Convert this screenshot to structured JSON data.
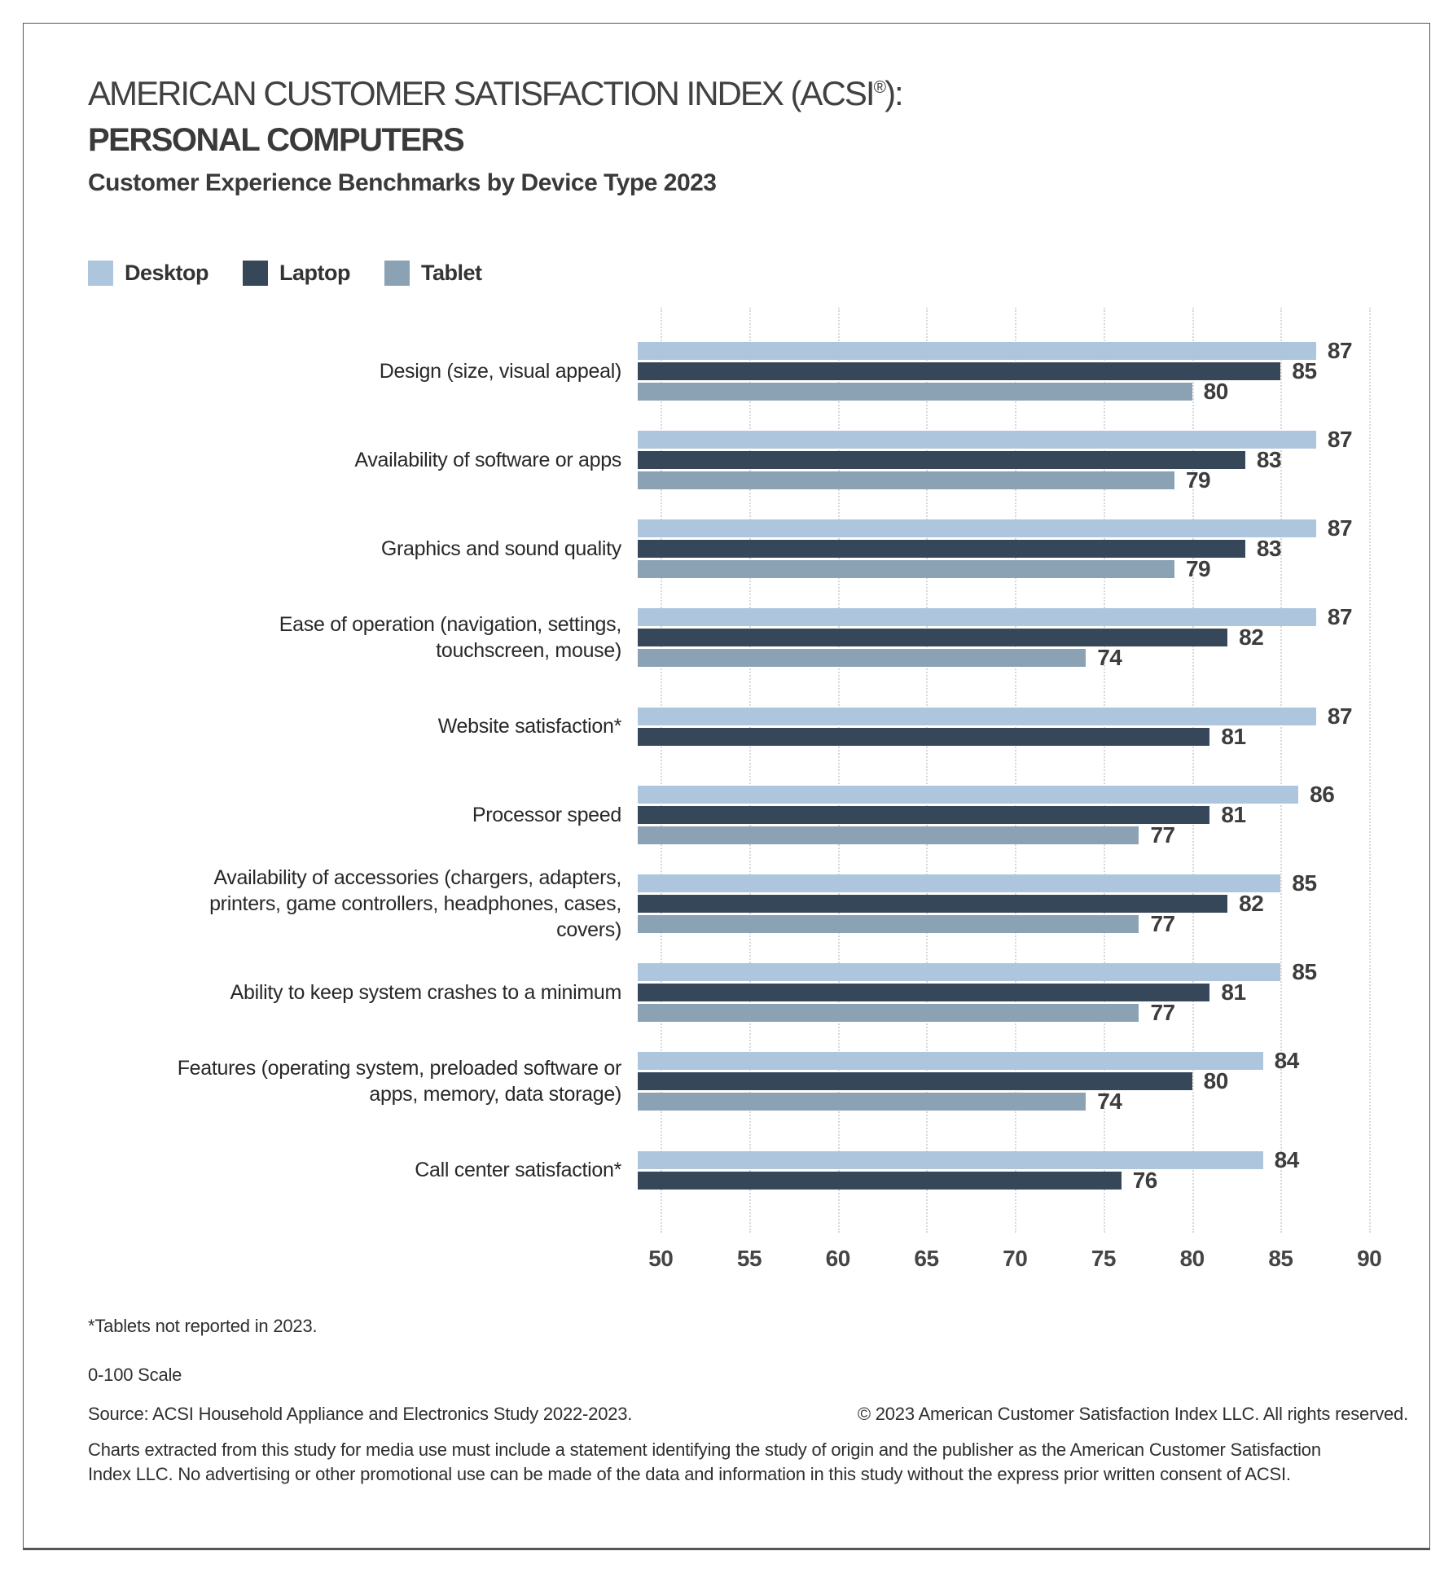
{
  "header": {
    "title_line1": "AMERICAN CUSTOMER SATISFACTION INDEX (ACSI®):",
    "title_line2": "PERSONAL COMPUTERS",
    "subtitle": "Customer Experience Benchmarks by Device Type 2023"
  },
  "legend": [
    {
      "label": "Desktop",
      "color": "#aec6dd"
    },
    {
      "label": "Laptop",
      "color": "#36475a"
    },
    {
      "label": "Tablet",
      "color": "#8ba2b5"
    }
  ],
  "chart_data": {
    "type": "bar",
    "orientation": "horizontal",
    "categories": [
      "Design (size, visual appeal)",
      "Availability of software or apps",
      "Graphics and sound quality",
      "Ease of operation (navigation, settings, touchscreen, mouse)",
      "Website satisfaction*",
      "Processor speed",
      "Availability of accessories (chargers, adapters, printers, game controllers, headphones, cases, covers)",
      "Ability to keep system crashes to a minimum",
      "Features (operating system, preloaded software or apps, memory, data storage)",
      "Call center satisfaction*"
    ],
    "series": [
      {
        "name": "Desktop",
        "color": "#aec6dd",
        "values": [
          87,
          87,
          87,
          87,
          87,
          86,
          85,
          85,
          84,
          84
        ]
      },
      {
        "name": "Laptop",
        "color": "#36475a",
        "values": [
          85,
          83,
          83,
          82,
          81,
          81,
          82,
          81,
          80,
          76
        ]
      },
      {
        "name": "Tablet",
        "color": "#8ba2b5",
        "values": [
          80,
          79,
          79,
          74,
          null,
          77,
          77,
          77,
          74,
          null
        ]
      }
    ],
    "xticks": [
      50,
      55,
      60,
      65,
      70,
      75,
      80,
      85,
      90
    ],
    "xlim": [
      48.7,
      92.2
    ],
    "scale_note": "0-100 Scale",
    "grid": "dotted-vertical",
    "value_labels": true,
    "legend_position": "top"
  },
  "footnotes": {
    "note1": "*Tablets not reported in 2023.",
    "note2": "0-100 Scale",
    "source": "Source: ACSI Household Appliance and Electronics Study 2022-2023.",
    "copyright": "© 2023 American Customer Satisfaction Index LLC. All rights reserved.",
    "disclaimer": "Charts extracted from this study for media use must include a statement identifying the study of origin and the publisher as the American Customer Satisfaction Index LLC. No advertising or other promotional use can be made of the data and information in this study without the express prior written consent of ACSI."
  }
}
